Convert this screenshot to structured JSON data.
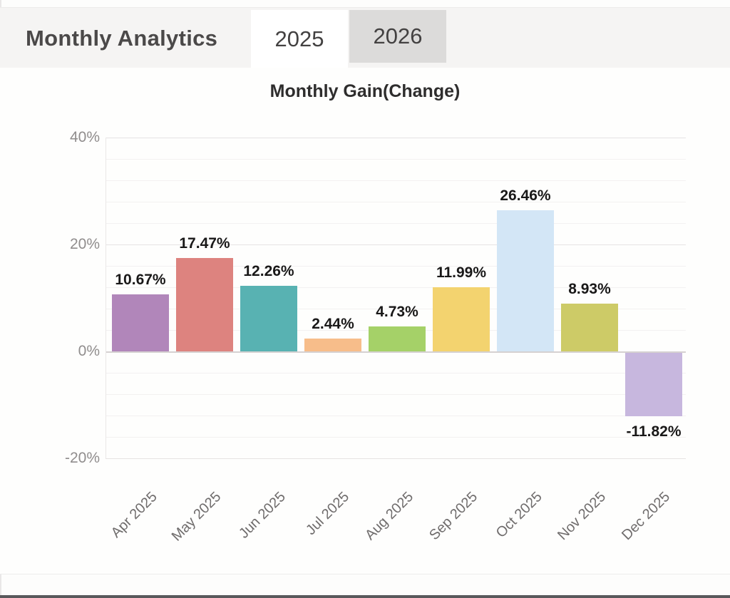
{
  "header": {
    "title": "Monthly Analytics",
    "tabs": [
      {
        "label": "2025",
        "active": true
      },
      {
        "label": "2026",
        "active": false
      }
    ]
  },
  "chart_data": {
    "type": "bar",
    "title": "Monthly Gain(Change)",
    "categories": [
      "Apr 2025",
      "May 2025",
      "Jun 2025",
      "Jul 2025",
      "Aug 2025",
      "Sep 2025",
      "Oct 2025",
      "Nov 2025",
      "Dec 2025"
    ],
    "values": [
      10.67,
      17.47,
      12.26,
      2.44,
      4.73,
      11.99,
      26.46,
      8.93,
      -11.82
    ],
    "value_labels": [
      "10.67%",
      "17.47%",
      "12.26%",
      "2.44%",
      "4.73%",
      "11.99%",
      "26.46%",
      "8.93%",
      "-11.82%"
    ],
    "bar_colors": [
      "#b186ba",
      "#dd837f",
      "#58b2b2",
      "#f7bd8a",
      "#a5d168",
      "#f3d36f",
      "#d3e6f6",
      "#cdcb67",
      "#c7b7de"
    ],
    "y_ticks": [
      "40%",
      "20%",
      "0%",
      "-20%"
    ],
    "y_tick_values": [
      40,
      20,
      0,
      -20
    ],
    "ylim": [
      -24,
      44
    ],
    "xlabel": "",
    "ylabel": "",
    "grid": true,
    "legend": false
  },
  "ui_colors": {
    "tab_active_bg": "#ffffff",
    "tab_inactive_bg": "#dcdbda",
    "header_bg": "#f5f4f3",
    "bottom_bar": "#59595b"
  }
}
